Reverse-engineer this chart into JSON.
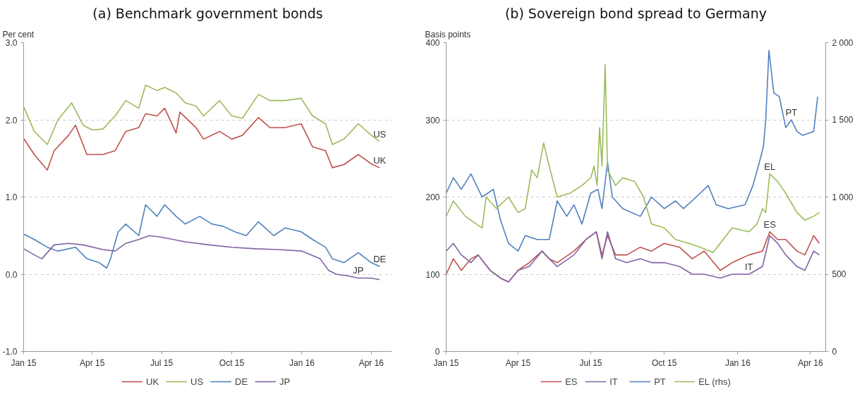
{
  "chart_data": [
    {
      "type": "line",
      "title": "(a) Benchmark government bonds",
      "ylabel": "Per cent",
      "legend": "bottom",
      "grid": "y",
      "xlim": [
        "2015-01-01",
        "2016-04-28"
      ],
      "ylim": [
        -1.0,
        3.0
      ],
      "xticks": [
        {
          "value": "2015-01-01",
          "label": "Jan 15"
        },
        {
          "value": "2015-04-01",
          "label": "Apr 15"
        },
        {
          "value": "2015-07-01",
          "label": "Jul 15"
        },
        {
          "value": "2015-10-01",
          "label": "Oct 15"
        },
        {
          "value": "2016-01-01",
          "label": "Jan 16"
        },
        {
          "value": "2016-04-01",
          "label": "Apr 16"
        }
      ],
      "yticks": [
        {
          "value": -1.0,
          "label": "-1.0"
        },
        {
          "value": 0.0,
          "label": "0.0"
        },
        {
          "value": 1.0,
          "label": "1.0"
        },
        {
          "value": 2.0,
          "label": "2.0"
        },
        {
          "value": 3.0,
          "label": "3.0"
        }
      ],
      "series": [
        {
          "name": "UK",
          "color": "#c0504d",
          "x": [
            "2015-01-01",
            "2015-01-15",
            "2015-02-01",
            "2015-02-10",
            "2015-03-01",
            "2015-03-10",
            "2015-03-25",
            "2015-04-15",
            "2015-05-01",
            "2015-05-15",
            "2015-06-01",
            "2015-06-10",
            "2015-06-25",
            "2015-07-05",
            "2015-07-20",
            "2015-07-25",
            "2015-08-15",
            "2015-08-25",
            "2015-09-15",
            "2015-10-01",
            "2015-10-15",
            "2015-11-05",
            "2015-11-20",
            "2015-12-10",
            "2015-12-31",
            "2016-01-15",
            "2016-02-01",
            "2016-02-10",
            "2016-02-25",
            "2016-03-15",
            "2016-04-01",
            "2016-04-12"
          ],
          "values": [
            1.76,
            1.55,
            1.35,
            1.6,
            1.8,
            1.93,
            1.55,
            1.55,
            1.6,
            1.85,
            1.9,
            2.08,
            2.05,
            2.15,
            1.83,
            2.1,
            1.9,
            1.75,
            1.85,
            1.75,
            1.8,
            2.03,
            1.9,
            1.9,
            1.95,
            1.65,
            1.6,
            1.38,
            1.42,
            1.55,
            1.43,
            1.38
          ]
        },
        {
          "name": "US",
          "color": "#9bbb59",
          "x": [
            "2015-01-01",
            "2015-01-15",
            "2015-02-01",
            "2015-02-15",
            "2015-03-05",
            "2015-03-20",
            "2015-04-01",
            "2015-04-15",
            "2015-05-01",
            "2015-05-15",
            "2015-06-01",
            "2015-06-10",
            "2015-06-25",
            "2015-07-05",
            "2015-07-20",
            "2015-08-01",
            "2015-08-15",
            "2015-08-25",
            "2015-09-15",
            "2015-10-01",
            "2015-10-15",
            "2015-11-05",
            "2015-11-20",
            "2015-12-10",
            "2015-12-31",
            "2016-01-15",
            "2016-02-01",
            "2016-02-10",
            "2016-02-25",
            "2016-03-15",
            "2016-04-01",
            "2016-04-12"
          ],
          "values": [
            2.17,
            1.85,
            1.68,
            2.0,
            2.22,
            1.93,
            1.87,
            1.88,
            2.05,
            2.25,
            2.15,
            2.45,
            2.38,
            2.42,
            2.35,
            2.22,
            2.18,
            2.05,
            2.25,
            2.05,
            2.02,
            2.33,
            2.25,
            2.25,
            2.28,
            2.05,
            1.95,
            1.68,
            1.75,
            1.95,
            1.8,
            1.72
          ]
        },
        {
          "name": "DE",
          "color": "#4f81bd",
          "x": [
            "2015-01-01",
            "2015-01-15",
            "2015-02-01",
            "2015-02-15",
            "2015-03-10",
            "2015-03-25",
            "2015-04-10",
            "2015-04-20",
            "2015-04-25",
            "2015-05-05",
            "2015-05-15",
            "2015-06-01",
            "2015-06-10",
            "2015-06-25",
            "2015-07-05",
            "2015-07-20",
            "2015-08-01",
            "2015-08-20",
            "2015-09-05",
            "2015-09-20",
            "2015-10-05",
            "2015-10-20",
            "2015-11-05",
            "2015-11-25",
            "2015-12-10",
            "2015-12-31",
            "2016-01-15",
            "2016-02-01",
            "2016-02-10",
            "2016-02-25",
            "2016-03-15",
            "2016-04-01",
            "2016-04-12"
          ],
          "values": [
            0.52,
            0.45,
            0.35,
            0.3,
            0.35,
            0.2,
            0.15,
            0.08,
            0.2,
            0.55,
            0.65,
            0.5,
            0.9,
            0.75,
            0.9,
            0.75,
            0.65,
            0.75,
            0.65,
            0.62,
            0.55,
            0.5,
            0.68,
            0.5,
            0.6,
            0.55,
            0.45,
            0.35,
            0.2,
            0.15,
            0.28,
            0.15,
            0.1
          ]
        },
        {
          "name": "JP",
          "color": "#8064a2",
          "x": [
            "2015-01-01",
            "2015-01-15",
            "2015-01-25",
            "2015-02-10",
            "2015-03-01",
            "2015-03-20",
            "2015-04-15",
            "2015-05-01",
            "2015-05-15",
            "2015-06-01",
            "2015-06-15",
            "2015-07-01",
            "2015-08-01",
            "2015-09-01",
            "2015-10-01",
            "2015-11-01",
            "2015-12-01",
            "2016-01-01",
            "2016-01-25",
            "2016-02-05",
            "2016-02-15",
            "2016-03-01",
            "2016-03-15",
            "2016-04-01",
            "2016-04-12"
          ],
          "values": [
            0.33,
            0.25,
            0.2,
            0.38,
            0.4,
            0.38,
            0.32,
            0.3,
            0.4,
            0.45,
            0.5,
            0.48,
            0.42,
            0.38,
            0.35,
            0.33,
            0.32,
            0.3,
            0.2,
            0.05,
            0.0,
            -0.02,
            -0.05,
            -0.05,
            -0.07
          ]
        }
      ],
      "annotations": [
        {
          "text": "US",
          "x": "2016-04-12",
          "y": 1.72
        },
        {
          "text": "UK",
          "x": "2016-04-12",
          "y": 1.38
        },
        {
          "text": "DE",
          "x": "2016-04-12",
          "y": 0.1
        },
        {
          "text": "JP",
          "x": "2016-03-15",
          "y": -0.05
        }
      ]
    },
    {
      "type": "line",
      "title": "(b) Sovereign bond spread to Germany",
      "ylabel": "Basis points",
      "legend": "bottom",
      "grid": "y",
      "xlim": [
        "2015-01-01",
        "2016-04-20"
      ],
      "ylim": [
        0,
        400
      ],
      "y2lim": [
        0,
        2000
      ],
      "xticks": [
        {
          "value": "2015-01-01",
          "label": "Jan 15"
        },
        {
          "value": "2015-04-01",
          "label": "Apr 15"
        },
        {
          "value": "2015-07-01",
          "label": "Jul 15"
        },
        {
          "value": "2015-10-01",
          "label": "Oct 15"
        },
        {
          "value": "2016-01-01",
          "label": "Jan 16"
        },
        {
          "value": "2016-04-01",
          "label": "Apr 16"
        }
      ],
      "yticks": [
        0,
        100,
        200,
        300,
        400
      ],
      "y2ticks": [
        0,
        500,
        {
          "value": 1000,
          "label": "1 000"
        },
        {
          "value": 1500,
          "label": "1 500"
        },
        {
          "value": 2000,
          "label": "2 000"
        }
      ],
      "series": [
        {
          "name": "ES",
          "color": "#c0504d",
          "x": [
            "2015-01-01",
            "2015-01-10",
            "2015-01-20",
            "2015-02-01",
            "2015-02-10",
            "2015-02-25",
            "2015-03-10",
            "2015-03-20",
            "2015-04-01",
            "2015-04-15",
            "2015-05-01",
            "2015-05-10",
            "2015-05-20",
            "2015-06-10",
            "2015-06-25",
            "2015-07-08",
            "2015-07-15",
            "2015-07-22",
            "2015-08-01",
            "2015-08-15",
            "2015-09-01",
            "2015-09-15",
            "2015-10-01",
            "2015-10-20",
            "2015-11-05",
            "2015-11-20",
            "2015-12-10",
            "2015-12-25",
            "2016-01-15",
            "2016-02-01",
            "2016-02-10",
            "2016-02-20",
            "2016-03-01",
            "2016-03-15",
            "2016-03-25",
            "2016-04-05",
            "2016-04-12"
          ],
          "values": [
            100,
            120,
            105,
            120,
            125,
            105,
            95,
            90,
            105,
            115,
            130,
            120,
            115,
            130,
            145,
            155,
            125,
            150,
            125,
            125,
            135,
            130,
            140,
            135,
            120,
            130,
            105,
            115,
            125,
            130,
            155,
            145,
            145,
            130,
            125,
            150,
            140
          ]
        },
        {
          "name": "IT",
          "color": "#8064a2",
          "x": [
            "2015-01-01",
            "2015-01-10",
            "2015-01-20",
            "2015-02-01",
            "2015-02-10",
            "2015-02-25",
            "2015-03-10",
            "2015-03-20",
            "2015-04-01",
            "2015-04-15",
            "2015-05-01",
            "2015-05-10",
            "2015-05-20",
            "2015-06-10",
            "2015-06-25",
            "2015-07-08",
            "2015-07-15",
            "2015-07-22",
            "2015-08-01",
            "2015-08-15",
            "2015-09-01",
            "2015-09-15",
            "2015-10-01",
            "2015-10-20",
            "2015-11-05",
            "2015-11-20",
            "2015-12-10",
            "2015-12-25",
            "2016-01-15",
            "2016-02-01",
            "2016-02-10",
            "2016-02-20",
            "2016-03-01",
            "2016-03-15",
            "2016-03-25",
            "2016-04-05",
            "2016-04-12"
          ],
          "values": [
            130,
            140,
            125,
            115,
            125,
            105,
            95,
            90,
            105,
            110,
            130,
            120,
            110,
            125,
            145,
            155,
            120,
            155,
            120,
            115,
            120,
            115,
            115,
            110,
            100,
            100,
            95,
            100,
            100,
            110,
            150,
            140,
            125,
            110,
            105,
            130,
            125
          ]
        },
        {
          "name": "PT",
          "color": "#4f81bd",
          "x": [
            "2015-01-01",
            "2015-01-10",
            "2015-01-20",
            "2015-02-01",
            "2015-02-15",
            "2015-03-01",
            "2015-03-10",
            "2015-03-20",
            "2015-04-01",
            "2015-04-10",
            "2015-04-25",
            "2015-05-10",
            "2015-05-20",
            "2015-06-01",
            "2015-06-10",
            "2015-06-20",
            "2015-07-01",
            "2015-07-10",
            "2015-07-15",
            "2015-07-22",
            "2015-07-28",
            "2015-08-10",
            "2015-09-01",
            "2015-09-15",
            "2015-10-01",
            "2015-10-15",
            "2015-10-25",
            "2015-11-10",
            "2015-11-25",
            "2015-12-05",
            "2015-12-20",
            "2016-01-10",
            "2016-01-20",
            "2016-01-28",
            "2016-02-02",
            "2016-02-05",
            "2016-02-09",
            "2016-02-15",
            "2016-02-22",
            "2016-03-01",
            "2016-03-08",
            "2016-03-15",
            "2016-03-22",
            "2016-04-05",
            "2016-04-10"
          ],
          "values": [
            205,
            225,
            210,
            230,
            200,
            210,
            170,
            140,
            130,
            150,
            145,
            145,
            195,
            175,
            190,
            165,
            205,
            210,
            185,
            245,
            200,
            185,
            175,
            200,
            185,
            195,
            185,
            200,
            215,
            190,
            185,
            190,
            215,
            245,
            265,
            300,
            390,
            335,
            330,
            290,
            300,
            285,
            280,
            285,
            330
          ]
        },
        {
          "name": "EL (rhs)",
          "color": "#9bbb59",
          "axis": "y2",
          "x": [
            "2015-01-01",
            "2015-01-10",
            "2015-01-25",
            "2015-02-15",
            "2015-02-20",
            "2015-03-05",
            "2015-03-20",
            "2015-04-01",
            "2015-04-10",
            "2015-04-18",
            "2015-04-25",
            "2015-05-03",
            "2015-05-10",
            "2015-05-20",
            "2015-06-05",
            "2015-06-20",
            "2015-07-01",
            "2015-07-05",
            "2015-07-09",
            "2015-07-12",
            "2015-07-15",
            "2015-07-19",
            "2015-07-22",
            "2015-08-01",
            "2015-08-10",
            "2015-08-25",
            "2015-09-05",
            "2015-09-15",
            "2015-10-01",
            "2015-10-15",
            "2015-11-01",
            "2015-11-15",
            "2015-12-01",
            "2015-12-10",
            "2015-12-25",
            "2016-01-15",
            "2016-01-25",
            "2016-02-01",
            "2016-02-05",
            "2016-02-10",
            "2016-02-20",
            "2016-03-01",
            "2016-03-15",
            "2016-03-25",
            "2016-04-05",
            "2016-04-12"
          ],
          "values": [
            875,
            975,
            875,
            800,
            1000,
            925,
            1000,
            900,
            925,
            1175,
            1125,
            1350,
            1200,
            1000,
            1025,
            1075,
            1125,
            1200,
            1075,
            1450,
            1200,
            1860,
            1175,
            1075,
            1125,
            1100,
            1000,
            825,
            800,
            725,
            700,
            675,
            640,
            700,
            800,
            775,
            825,
            925,
            900,
            1150,
            1100,
            1025,
            900,
            850,
            875,
            900
          ]
        }
      ],
      "annotations": [
        {
          "text": "PT",
          "x": "2016-03-08",
          "y": 300
        },
        {
          "text": "EL",
          "x": "2016-02-10",
          "y": 230
        },
        {
          "text": "ES",
          "x": "2016-02-10",
          "y": 155
        },
        {
          "text": "IT",
          "x": "2016-01-15",
          "y": 100
        }
      ]
    }
  ]
}
